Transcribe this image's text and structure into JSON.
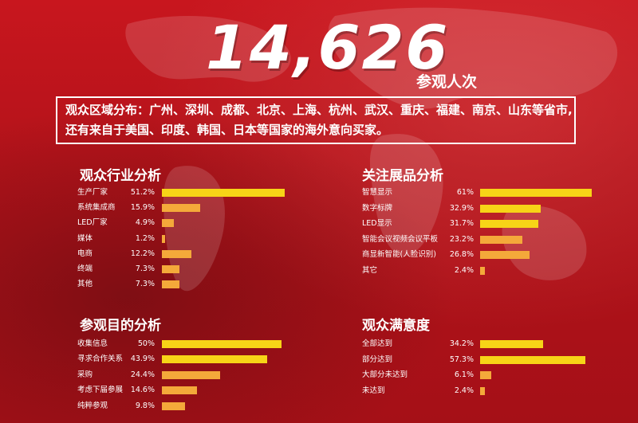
{
  "hero": {
    "number": "14,626",
    "unit": "参观人次"
  },
  "region": {
    "line1": "观众区域分布：广州、深圳、成都、北京、上海、杭州、武汉、重庆、福建、南京、山东等省市,",
    "line2": "还有来自于美国、印度、韩国、日本等国家的海外意向买家。"
  },
  "colors": {
    "bar_yellow": "#f7d417",
    "bar_orange": "#f4a93a",
    "background": "#b8141b"
  },
  "chart_data": [
    {
      "type": "bar",
      "title": "观众行业分析",
      "categories": [
        "生产厂家",
        "系统集成商",
        "LED厂家",
        "媒体",
        "电商",
        "终端",
        "其他"
      ],
      "values": [
        51.2,
        15.9,
        4.9,
        1.2,
        12.2,
        7.3,
        7.3
      ],
      "labels": [
        "51.2%",
        "15.9%",
        "4.9%",
        "1.2%",
        "12.2%",
        "7.3%",
        "7.3%"
      ]
    },
    {
      "type": "bar",
      "title": "关注展品分析",
      "categories": [
        "智慧显示",
        "数字标牌",
        "LED显示",
        "智能会议视频会议平板",
        "商显新智能(人脸识别)",
        "其它"
      ],
      "values": [
        61,
        32.9,
        31.7,
        23.2,
        26.8,
        2.4
      ],
      "labels": [
        "61%",
        "32.9%",
        "31.7%",
        "23.2%",
        "26.8%",
        "2.4%"
      ]
    },
    {
      "type": "bar",
      "title": "参观目的分析",
      "categories": [
        "收集信息",
        "寻求合作关系",
        "采购",
        "考虑下届参展",
        "纯粹参观"
      ],
      "values": [
        50,
        43.9,
        24.4,
        14.6,
        9.8
      ],
      "labels": [
        "50%",
        "43.9%",
        "24.4%",
        "14.6%",
        "9.8%"
      ]
    },
    {
      "type": "bar",
      "title": "观众满意度",
      "categories": [
        "全部达到",
        "部分达到",
        "大部分未达到",
        "未达到"
      ],
      "values": [
        34.2,
        57.3,
        6.1,
        2.4
      ],
      "labels": [
        "34.2%",
        "57.3%",
        "6.1%",
        "2.4%"
      ]
    }
  ]
}
